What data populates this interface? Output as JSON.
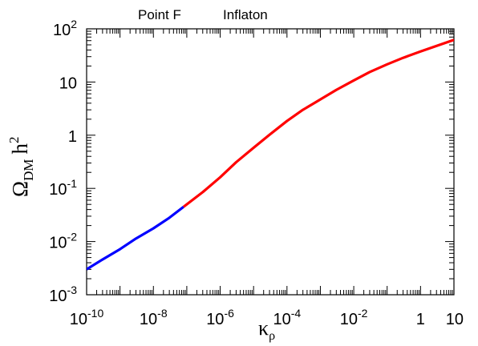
{
  "chart_data": {
    "type": "line",
    "title": "",
    "annotations": [
      "Point F",
      "Inflaton"
    ],
    "xlabel": {
      "symbol": "κ",
      "subscript": "ρ"
    },
    "ylabel": {
      "symbol": "Ω",
      "subscript": "DM",
      "suffix": "h",
      "superscript": "2"
    },
    "x_scale": "log",
    "y_scale": "log",
    "xlim": [
      1e-10,
      10
    ],
    "ylim": [
      0.001,
      100
    ],
    "x_ticks": [
      {
        "value": 1e-10,
        "base": "10",
        "exp": "-10"
      },
      {
        "value": 1e-08,
        "base": "10",
        "exp": "-8"
      },
      {
        "value": 1e-06,
        "base": "10",
        "exp": "-6"
      },
      {
        "value": 0.0001,
        "base": "10",
        "exp": "-4"
      },
      {
        "value": 0.01,
        "base": "10",
        "exp": "-2"
      },
      {
        "value": 1,
        "base": "1",
        "exp": ""
      },
      {
        "value": 10,
        "base": "10",
        "exp": ""
      }
    ],
    "y_ticks": [
      {
        "value": 0.001,
        "base": "10",
        "exp": "-3"
      },
      {
        "value": 0.01,
        "base": "10",
        "exp": "-2"
      },
      {
        "value": 0.1,
        "base": "10",
        "exp": "-1"
      },
      {
        "value": 1,
        "base": "1",
        "exp": ""
      },
      {
        "value": 10,
        "base": "10",
        "exp": ""
      },
      {
        "value": 100,
        "base": "10",
        "exp": "2"
      }
    ],
    "grid": false,
    "legend": "none",
    "series": [
      {
        "color": "#0000ff",
        "points": [
          [
            1e-10,
            0.003
          ],
          [
            3e-10,
            0.0046
          ],
          [
            1e-09,
            0.0072
          ],
          [
            3e-09,
            0.0114
          ],
          [
            1e-08,
            0.0177
          ],
          [
            3e-08,
            0.028
          ],
          [
            8e-08,
            0.045
          ]
        ]
      },
      {
        "color": "#ff0000",
        "points": [
          [
            8e-08,
            0.045
          ],
          [
            3e-07,
            0.085
          ],
          [
            1e-06,
            0.162
          ],
          [
            3e-06,
            0.31
          ],
          [
            1e-05,
            0.58
          ],
          [
            3e-05,
            1.02
          ],
          [
            0.0001,
            1.85
          ],
          [
            0.0003,
            3.0
          ],
          [
            0.001,
            4.7
          ],
          [
            0.003,
            7.1
          ],
          [
            0.01,
            10.7
          ],
          [
            0.03,
            15.4
          ],
          [
            0.1,
            21.5
          ],
          [
            0.3,
            28.5
          ],
          [
            1,
            37.5
          ],
          [
            10,
            62
          ]
        ]
      }
    ]
  }
}
